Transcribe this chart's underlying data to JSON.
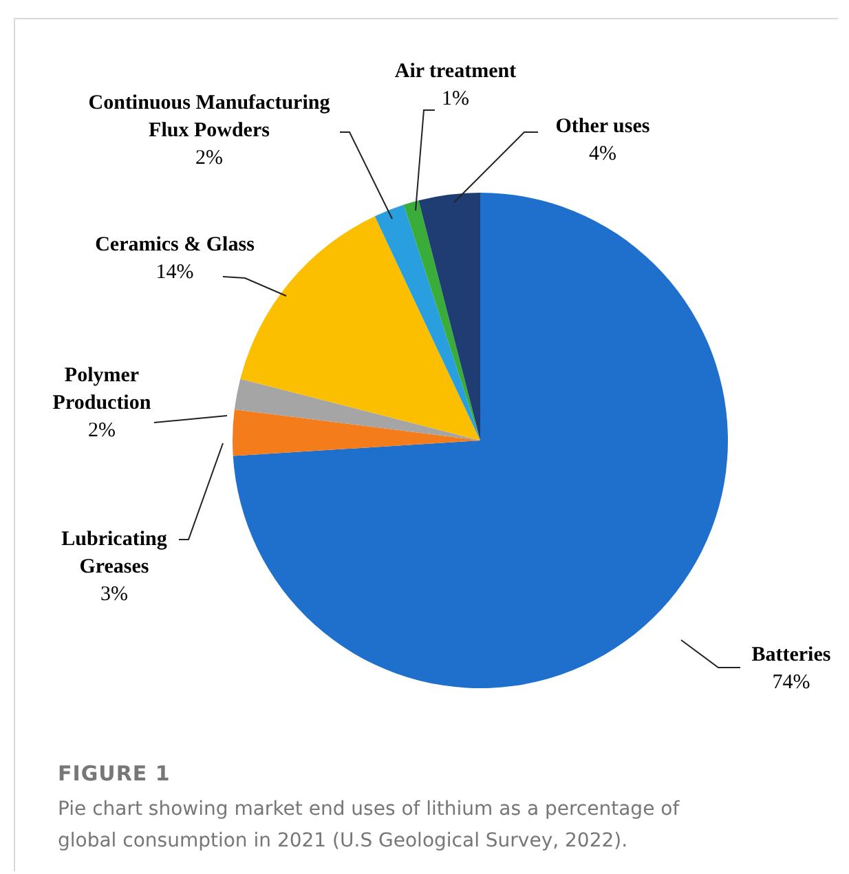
{
  "chart_data": {
    "type": "pie",
    "title": "FIGURE 1",
    "categories": [
      "Batteries",
      "Lubricating Greases",
      "Polymer Production",
      "Ceramics & Glass",
      "Continuous Manufacturing Flux Powders",
      "Air treatment",
      "Other uses"
    ],
    "values": [
      74,
      3,
      2,
      14,
      2,
      1,
      4
    ],
    "value_labels": [
      "74%",
      "3%",
      "2%",
      "14%",
      "2%",
      "1%",
      "4%"
    ],
    "colors": [
      "#1f6fcc",
      "#f57c1a",
      "#a5a5a5",
      "#fbbf00",
      "#2a9fe0",
      "#3aac3a",
      "#1f3d73"
    ],
    "annotations": [
      "Pie chart showing market end uses of lithium as a percentage of global consumption in 2021 (U.S Geological Survey, 2022)."
    ]
  }
}
